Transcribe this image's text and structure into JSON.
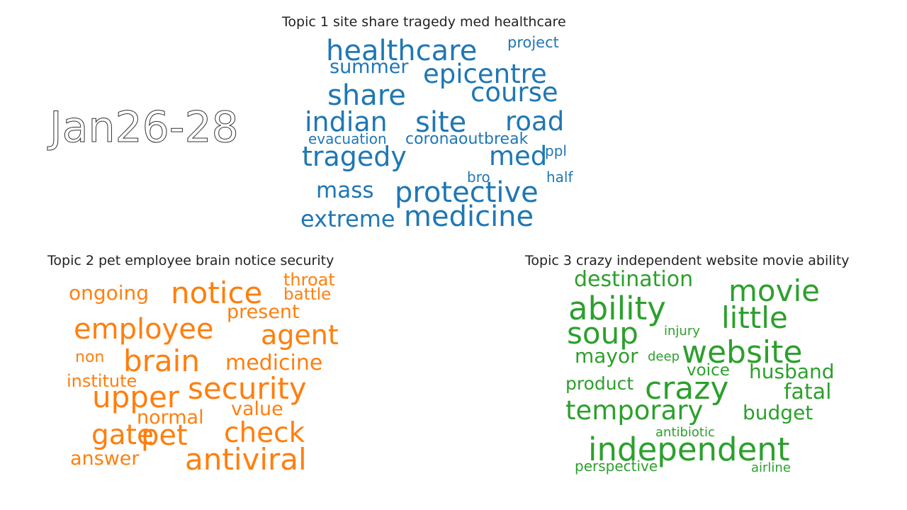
{
  "date_label": "Jan26-28",
  "colors": {
    "topic1": "#1f77b4",
    "topic2": "#ff7f0e",
    "topic3": "#2ca02c"
  },
  "topics": [
    {
      "title": "Topic 1 site share tragedy med healthcare",
      "words": [
        "healthcare",
        "project",
        "summer",
        "epicentre",
        "share",
        "course",
        "indian",
        "site",
        "road",
        "evacuation",
        "coronaoutbreak",
        "tragedy",
        "med",
        "ppl",
        "bro",
        "half",
        "mass",
        "protective",
        "extreme",
        "medicine"
      ]
    },
    {
      "title": "Topic 2 pet employee brain notice security",
      "words": [
        "throat",
        "battle",
        "ongoing",
        "notice",
        "present",
        "employee",
        "agent",
        "non",
        "brain",
        "medicine",
        "institute",
        "security",
        "upper",
        "value",
        "normal",
        "gate",
        "pet",
        "check",
        "answer",
        "antiviral"
      ]
    },
    {
      "title": "Topic 3 crazy independent website movie ability",
      "words": [
        "destination",
        "movie",
        "ability",
        "little",
        "soup",
        "injury",
        "mayor",
        "deep",
        "website",
        "voice",
        "husband",
        "product",
        "crazy",
        "fatal",
        "temporary",
        "budget",
        "antibiotic",
        "independent",
        "perspective",
        "airline"
      ]
    }
  ]
}
